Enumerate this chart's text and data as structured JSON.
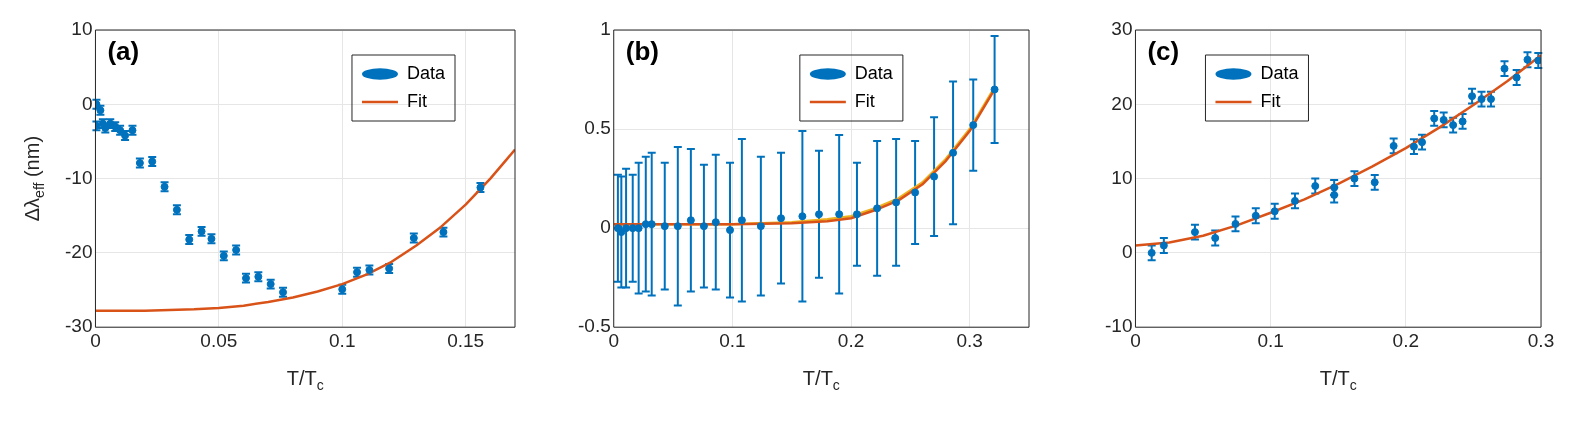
{
  "chart_data": [
    {
      "type": "scatter",
      "xlabel": "T/T$_{c}$",
      "ylabel": "Δλ$_{eff}$ (nm)",
      "annotations": [
        "(a)"
      ],
      "xlim": [
        0,
        0.17
      ],
      "xticks": [
        0,
        0.05,
        0.1,
        0.15
      ],
      "ylim": [
        -30,
        10
      ],
      "yticks": [
        -30,
        -20,
        -10,
        0,
        10
      ],
      "grid": true,
      "legend": "top right",
      "series": [
        {
          "name": "Data",
          "type": "scatter",
          "marker": "circle",
          "color": "#0072bd",
          "x": [
            0.0004,
            0.002,
            0.0004,
            0.003,
            0.004,
            0.006,
            0.008,
            0.01,
            0.012,
            0.015,
            0.018,
            0.023,
            0.028,
            0.033,
            0.038,
            0.043,
            0.047,
            0.052,
            0.057,
            0.061,
            0.066,
            0.071,
            0.076,
            0.1,
            0.106,
            0.111,
            0.119,
            0.129,
            0.141,
            0.156
          ],
          "values": [
            0,
            -0.8,
            -2.9,
            -2.6,
            -3.2,
            -2.6,
            -3.0,
            -3.5,
            -4.2,
            -3.5,
            -7.9,
            -7.7,
            -11.1,
            -14.2,
            -18.2,
            -17.1,
            -18.1,
            -20.4,
            -19.6,
            -23.4,
            -23.2,
            -24.2,
            -25.3,
            -24.9,
            -22.6,
            -22.3,
            -22.1,
            -18.0,
            -17.2,
            -11.2
          ],
          "errors": [
            0.6,
            0.6,
            0.6,
            0.6,
            0.6,
            0.6,
            0.6,
            0.6,
            0.6,
            0.6,
            0.6,
            0.6,
            0.6,
            0.6,
            0.6,
            0.6,
            0.6,
            0.6,
            0.6,
            0.6,
            0.6,
            0.6,
            0.6,
            0.6,
            0.6,
            0.6,
            0.6,
            0.6,
            0.6,
            0.6
          ]
        },
        {
          "name": "Fit",
          "type": "line",
          "color": "#d95319",
          "x": [
            0,
            0.02,
            0.04,
            0.05,
            0.06,
            0.07,
            0.08,
            0.09,
            0.1,
            0.11,
            0.12,
            0.13,
            0.14,
            0.15,
            0.16,
            0.17
          ],
          "values": [
            -27.8,
            -27.8,
            -27.6,
            -27.4,
            -27.1,
            -26.6,
            -26.0,
            -25.2,
            -24.2,
            -22.9,
            -21.2,
            -19.0,
            -16.5,
            -13.5,
            -10.0,
            -6.1
          ]
        }
      ]
    },
    {
      "type": "scatter",
      "xlabel": "T/T$_{c}$",
      "annotations": [
        "(b)"
      ],
      "xlim": [
        0,
        0.35
      ],
      "xticks": [
        0,
        0.1,
        0.2,
        0.3
      ],
      "ylim": [
        -0.5,
        1
      ],
      "yticks": [
        -0.5,
        0,
        0.5,
        1
      ],
      "grid": true,
      "legend": "top",
      "series": [
        {
          "name": "Data",
          "type": "scatter",
          "marker": "circle",
          "color": "#0072bd",
          "x": [
            0.0035,
            0.0064,
            0.0104,
            0.016,
            0.021,
            0.027,
            0.032,
            0.043,
            0.054,
            0.065,
            0.076,
            0.086,
            0.098,
            0.108,
            0.124,
            0.141,
            0.159,
            0.173,
            0.19,
            0.205,
            0.222,
            0.238,
            0.254,
            0.27,
            0.286,
            0.303,
            0.321
          ],
          "values": [
            0,
            -0.02,
            0,
            0,
            0,
            0.02,
            0.02,
            0.01,
            0.01,
            0.04,
            0.01,
            0.03,
            -0.01,
            0.04,
            0.01,
            0.05,
            0.06,
            0.07,
            0.07,
            0.07,
            0.1,
            0.13,
            0.18,
            0.26,
            0.38,
            0.52,
            0.7
          ],
          "errors": [
            0.27,
            0.28,
            0.3,
            0.27,
            0.33,
            0.34,
            0.36,
            0.32,
            0.4,
            0.36,
            0.31,
            0.34,
            0.34,
            0.41,
            0.35,
            0.33,
            0.43,
            0.32,
            0.4,
            0.26,
            0.34,
            0.32,
            0.26,
            0.3,
            0.36,
            0.23,
            0.27
          ]
        },
        {
          "name": "Fit",
          "type": "line",
          "color": "#d95319",
          "x": [
            0,
            0.05,
            0.1,
            0.15,
            0.18,
            0.2,
            0.22,
            0.24,
            0.26,
            0.28,
            0.3,
            0.32
          ],
          "values": [
            0.02,
            0.02,
            0.02,
            0.025,
            0.035,
            0.05,
            0.09,
            0.14,
            0.22,
            0.34,
            0.49,
            0.69
          ]
        },
        {
          "type": "line",
          "color": "#edb120",
          "x": [
            0,
            0.05,
            0.1,
            0.15,
            0.18,
            0.2,
            0.22,
            0.24,
            0.26,
            0.28,
            0.3,
            0.32
          ],
          "values": [
            0.02,
            0.02,
            0.02,
            0.03,
            0.045,
            0.06,
            0.1,
            0.15,
            0.23,
            0.35,
            0.5,
            0.7
          ]
        }
      ]
    },
    {
      "type": "scatter",
      "xlabel": "T/T$_{c}$",
      "annotations": [
        "(c)"
      ],
      "xlim": [
        0,
        0.3
      ],
      "xticks": [
        0,
        0.1,
        0.2,
        0.3
      ],
      "ylim": [
        -10,
        30
      ],
      "yticks": [
        -10,
        0,
        10,
        20,
        30
      ],
      "grid": true,
      "legend": "top left",
      "series": [
        {
          "name": "Data",
          "type": "scatter",
          "marker": "circle",
          "color": "#0072bd",
          "x": [
            0.012,
            0.021,
            0.044,
            0.059,
            0.074,
            0.089,
            0.103,
            0.118,
            0.133,
            0.147,
            0.147,
            0.162,
            0.177,
            0.191,
            0.206,
            0.212,
            0.221,
            0.228,
            0.235,
            0.242,
            0.249,
            0.256,
            0.263,
            0.273,
            0.282,
            0.29,
            0.298
          ],
          "values": [
            0,
            1.0,
            2.8,
            2.0,
            3.9,
            5.0,
            5.6,
            7.0,
            9.0,
            8.8,
            7.8,
            10.0,
            9.5,
            14.4,
            14.3,
            14.9,
            18.1,
            17.9,
            17.2,
            17.7,
            21.1,
            20.7,
            20.7,
            24.8,
            23.6,
            26.0,
            25.9
          ],
          "errors": [
            1,
            1,
            1,
            1,
            1,
            1,
            1,
            1,
            1,
            1,
            1,
            1,
            1,
            1,
            1,
            1,
            1,
            1,
            1,
            1,
            1,
            1,
            1,
            1,
            1,
            1,
            1
          ]
        },
        {
          "name": "Fit",
          "type": "line",
          "color": "#d95319",
          "x": [
            0,
            0.025,
            0.05,
            0.075,
            0.1,
            0.125,
            0.15,
            0.175,
            0.2,
            0.225,
            0.25,
            0.275,
            0.3
          ],
          "values": [
            1.0,
            1.4,
            2.3,
            3.7,
            5.4,
            7.2,
            9.3,
            11.6,
            14.1,
            16.9,
            19.9,
            23.1,
            26.6
          ]
        }
      ]
    }
  ]
}
